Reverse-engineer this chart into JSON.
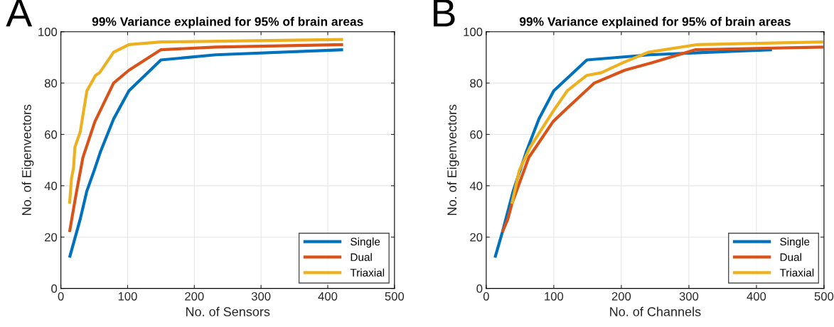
{
  "chart_data": [
    {
      "type": "line",
      "title": "99% Variance explained for 95% of brain areas",
      "xlabel": "No. of Sensors",
      "ylabel": "No. of Eigenvectors",
      "annotations": [
        "A"
      ],
      "xlim": [
        0,
        500
      ],
      "xticks": [
        0,
        100,
        200,
        300,
        400,
        500
      ],
      "ylim": [
        0,
        100
      ],
      "yticks": [
        0,
        20,
        40,
        60,
        80,
        100
      ],
      "grid": true,
      "legend": "bottom right",
      "series": [
        {
          "name": "Single",
          "color": "#0072bd",
          "x": [
            13,
            29,
            39,
            50,
            59,
            79,
            102,
            150,
            232,
            423
          ],
          "values": [
            12,
            27,
            38,
            46,
            53,
            66,
            77,
            89,
            91,
            93
          ]
        },
        {
          "name": "Dual",
          "color": "#d95319",
          "x": [
            13,
            23,
            33,
            51,
            79,
            102,
            150,
            232,
            423
          ],
          "values": [
            22,
            37,
            51,
            65,
            80,
            85,
            93,
            94,
            95
          ]
        },
        {
          "name": "Triaxial",
          "color": "#edb120",
          "x": [
            13,
            16,
            19,
            21,
            29,
            39,
            52,
            58,
            79,
            102,
            150,
            423
          ],
          "values": [
            33,
            43,
            47,
            55,
            61,
            77,
            83,
            84,
            92,
            95,
            96,
            97
          ]
        }
      ]
    },
    {
      "type": "line",
      "title": "99% Variance explained for 95% of brain areas",
      "xlabel": "No. of Channels",
      "ylabel": "No. of Eigenvectors",
      "annotations": [
        "B"
      ],
      "xlim": [
        0,
        500
      ],
      "xticks": [
        0,
        100,
        200,
        300,
        400,
        500
      ],
      "ylim": [
        0,
        100
      ],
      "yticks": [
        0,
        20,
        40,
        60,
        80,
        100
      ],
      "grid": true,
      "legend": "bottom right",
      "series": [
        {
          "name": "Single",
          "color": "#0072bd",
          "x": [
            13,
            24,
            40,
            59,
            78,
            100,
            149,
            242,
            423
          ],
          "values": [
            12,
            22,
            38,
            53,
            66,
            77,
            89,
            91,
            93
          ]
        },
        {
          "name": "Dual",
          "color": "#d95319",
          "x": [
            24,
            32,
            38,
            63,
            99,
            119,
            160,
            205,
            246,
            310,
            499
          ],
          "values": [
            22,
            27,
            33,
            51,
            65,
            70,
            80,
            85,
            88,
            93,
            94
          ]
        },
        {
          "name": "Triaxial",
          "color": "#edb120",
          "x": [
            38,
            49,
            65,
            99,
            120,
            149,
            170,
            203,
            240,
            313,
            499
          ],
          "values": [
            33,
            46,
            55,
            69,
            77,
            83,
            84,
            88,
            92,
            95,
            96
          ]
        }
      ]
    }
  ]
}
